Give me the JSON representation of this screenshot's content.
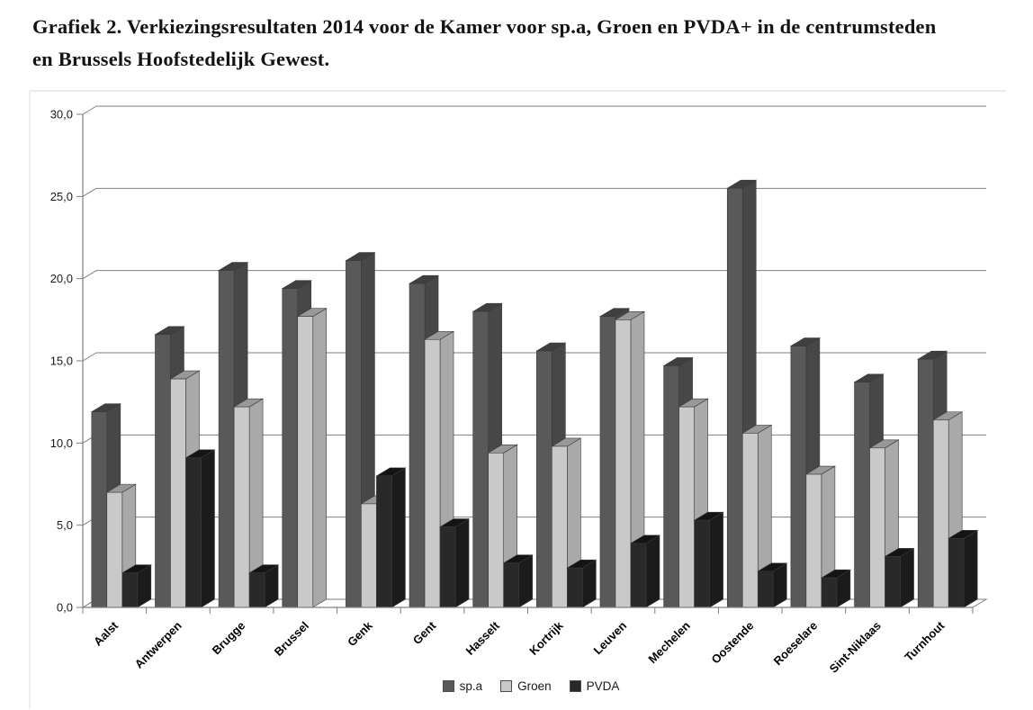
{
  "title": "Grafiek 2. Verkiezingsresultaten 2014 voor de Kamer voor sp.a, Groen en PVDA+ in de centrumsteden en Brussels Hoofstedelijk Gewest.",
  "chart_data": {
    "type": "bar",
    "style": "3d-clustered-column",
    "title": "Grafiek 2. Verkiezingsresultaten 2014 voor de Kamer voor sp.a, Groen en PVDA+ in de centrumsteden en Brussels Hoofstedelijk Gewest.",
    "xlabel": "",
    "ylabel": "",
    "ylim": [
      0,
      30
    ],
    "ytick_interval": 5,
    "ytick_labels": [
      "0,0",
      "5,0",
      "10,0",
      "15,0",
      "20,0",
      "25,0",
      "30,0"
    ],
    "grid": "horizontal",
    "legend_position": "bottom",
    "axis_color": "#7f7f7f",
    "label_color": "#1a1a1a",
    "categories": [
      "Aalst",
      "Antwerpen",
      "Brugge",
      "Brussel",
      "Genk",
      "Gent",
      "Hasselt",
      "Kortrijk",
      "Leuven",
      "Mechelen",
      "Oostende",
      "Roeselare",
      "Sint-Niklaas",
      "Turnhout"
    ],
    "series": [
      {
        "name": "sp.a",
        "color": "#595959",
        "side_color": "#474747",
        "top_color": "#3f3f3f",
        "values": [
          11.9,
          16.6,
          20.5,
          19.4,
          21.1,
          19.7,
          18.0,
          15.6,
          17.7,
          14.7,
          25.5,
          15.9,
          13.7,
          15.1
        ]
      },
      {
        "name": "Groen",
        "color": "#c9c9c9",
        "side_color": "#a9a9a9",
        "top_color": "#989898",
        "values": [
          7.0,
          13.9,
          12.2,
          17.7,
          6.3,
          16.3,
          9.4,
          9.8,
          17.5,
          12.2,
          10.6,
          8.1,
          9.7,
          11.4
        ]
      },
      {
        "name": "PVDA",
        "color": "#292929",
        "side_color": "#1b1b1b",
        "top_color": "#141414",
        "values": [
          2.1,
          9.1,
          2.1,
          null,
          8.0,
          4.9,
          2.7,
          2.4,
          3.9,
          5.3,
          2.2,
          1.8,
          3.1,
          4.2
        ]
      }
    ]
  }
}
